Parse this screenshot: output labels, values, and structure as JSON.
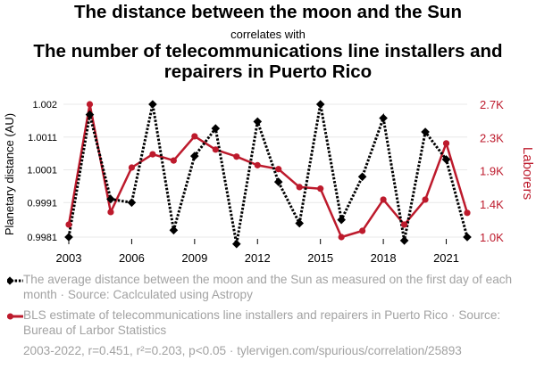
{
  "titles": {
    "main": "The distance between the moon and the Sun",
    "connector": "correlates with",
    "secondary": "The number of telecommunications line installers and repairers in Puerto Rico"
  },
  "colors": {
    "series1": "#000000",
    "series2": "#bd1a2c",
    "legend_text": "#a2a2a2",
    "grid": "#e8e8e8"
  },
  "chart_data": {
    "type": "line",
    "x": [
      2003,
      2004,
      2005,
      2006,
      2007,
      2008,
      2009,
      2010,
      2011,
      2012,
      2013,
      2014,
      2015,
      2016,
      2017,
      2018,
      2019,
      2020,
      2021,
      2022
    ],
    "series": [
      {
        "name": "The distance between the moon and the Sun",
        "axis": "left",
        "style": "dotted",
        "marker": "diamond",
        "values": [
          0.99815,
          1.0017,
          0.99925,
          0.99915,
          1.002,
          0.99835,
          1.0005,
          1.0013,
          0.99795,
          1.0015,
          0.99975,
          0.99855,
          1.002,
          0.99865,
          0.9999,
          1.0016,
          0.99805,
          1.0012,
          1.0004,
          0.99815
        ]
      },
      {
        "name": "Laborers",
        "axis": "right",
        "style": "solid",
        "marker": "circle",
        "values": [
          1.16,
          2.7,
          1.32,
          1.89,
          2.06,
          1.98,
          2.29,
          2.12,
          2.03,
          1.92,
          1.87,
          1.64,
          1.62,
          1.0,
          1.08,
          1.48,
          1.16,
          1.48,
          2.2,
          1.31
        ]
      }
    ],
    "y_left": {
      "label": "Planetary distance (AU)",
      "ticks": [
        "1.002",
        "1.0011",
        "1.0001",
        "0.9991",
        "0.9981"
      ],
      "tick_values": [
        1.002,
        1.00105,
        1.0001,
        0.99915,
        0.99815
      ],
      "range": [
        0.99815,
        1.002
      ]
    },
    "y_right": {
      "label": "Laborers",
      "ticks": [
        "2.7K",
        "2.3K",
        "1.9K",
        "1.4K",
        "1.0K"
      ],
      "tick_values": [
        2.7,
        2.275,
        1.85,
        1.425,
        1.0
      ],
      "range": [
        1.0,
        2.7
      ]
    },
    "x_ticks": [
      "2003",
      "2006",
      "2009",
      "2012",
      "2015",
      "2018",
      "2021"
    ],
    "x_tick_values": [
      2003,
      2006,
      2009,
      2012,
      2015,
      2018,
      2021
    ],
    "x_range": [
      2003,
      2022
    ],
    "grid": "horizontal"
  },
  "legend": {
    "item1": "The average distance between the moon and the Sun as measured on the first day of each month · Source: Caclculated using Astropy",
    "item2": "BLS estimate of telecommunications line installers and repairers in Puerto Rico · Source: Bureau of Larbor Statistics"
  },
  "footer": "2003-2022, r=0.451, r²=0.203, p<0.05 · tylervigen.com/spurious/correlation/25893"
}
